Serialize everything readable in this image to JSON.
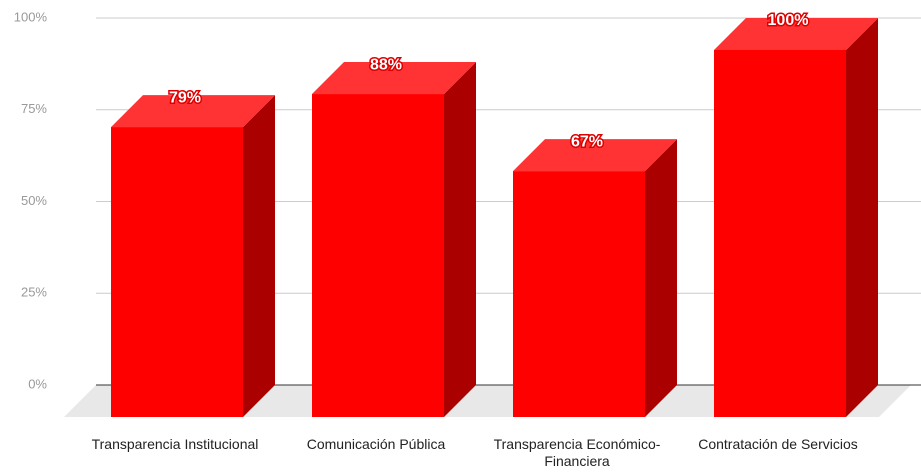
{
  "chart_data": {
    "type": "bar3d",
    "categories": [
      "Transparencia Institucional",
      "Comunicación Pública",
      "Transparencia Económico-Financiera",
      "Contratación de Servicios"
    ],
    "values": [
      79,
      88,
      67,
      100
    ],
    "value_labels": [
      "79%",
      "88%",
      "67%",
      "100%"
    ],
    "color": "#ff0000",
    "ylim": [
      0,
      100
    ],
    "yticks": [
      {
        "value": 0,
        "label": "0%"
      },
      {
        "value": 25,
        "label": "25%"
      },
      {
        "value": 50,
        "label": "50%"
      },
      {
        "value": 75,
        "label": "75%"
      },
      {
        "value": 100,
        "label": "100%"
      }
    ],
    "grid": true
  }
}
